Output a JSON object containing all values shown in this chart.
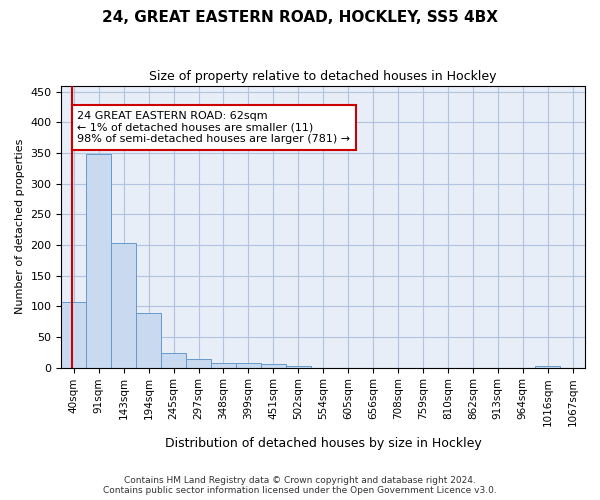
{
  "title": "24, GREAT EASTERN ROAD, HOCKLEY, SS5 4BX",
  "subtitle": "Size of property relative to detached houses in Hockley",
  "xlabel": "Distribution of detached houses by size in Hockley",
  "ylabel": "Number of detached properties",
  "footer_line1": "Contains HM Land Registry data © Crown copyright and database right 2024.",
  "footer_line2": "Contains public sector information licensed under the Open Government Licence v3.0.",
  "annotation_line1": "24 GREAT EASTERN ROAD: 62sqm",
  "annotation_line2": "← 1% of detached houses are smaller (11)",
  "annotation_line3": "98% of semi-detached houses are larger (781) →",
  "bar_color": "#c9d9f0",
  "bar_edge_color": "#6699cc",
  "vline_color": "#cc0000",
  "annotation_box_color": "#cc0000",
  "grid_color": "#b0c4de",
  "background_color": "#e8eef8",
  "bin_labels": [
    "40sqm",
    "91sqm",
    "143sqm",
    "194sqm",
    "245sqm",
    "297sqm",
    "348sqm",
    "399sqm",
    "451sqm",
    "502sqm",
    "554sqm",
    "605sqm",
    "656sqm",
    "708sqm",
    "759sqm",
    "810sqm",
    "862sqm",
    "913sqm",
    "964sqm",
    "1016sqm",
    "1067sqm"
  ],
  "values": [
    107,
    348,
    203,
    89,
    23,
    14,
    8,
    8,
    5,
    2,
    0,
    0,
    0,
    0,
    0,
    0,
    0,
    0,
    0,
    3,
    0
  ],
  "ylim": [
    0,
    460
  ],
  "yticks": [
    0,
    50,
    100,
    150,
    200,
    250,
    300,
    350,
    400,
    450
  ]
}
